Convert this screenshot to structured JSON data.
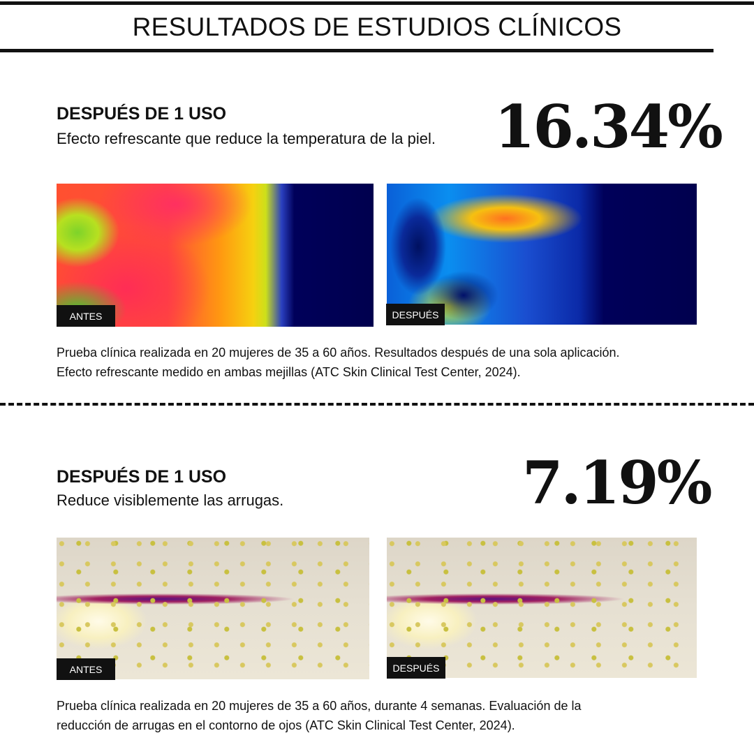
{
  "title": "RESULTADOS DE ESTUDIOS CLÍNICOS",
  "sections": [
    {
      "heading": "DESPUÉS DE 1 USO",
      "subtitle": "Efecto refrescante que reduce la temperatura de la piel.",
      "value": "16.34%",
      "before_label": "ANTES",
      "after_label": "DESPUÉS",
      "caption_lines": [
        "Prueba clínica realizada en 20 mujeres de 35 a 60 años. Resultados después de una sola aplicación.",
        "Efecto refrescante medido en ambas mejillas (ATC Skin Clinical Test Center, 2024)."
      ]
    },
    {
      "heading": "DESPUÉS DE 1 USO",
      "subtitle": "Reduce visiblemente las arrugas.",
      "value": "7.19%",
      "before_label": "ANTES",
      "after_label": "DESPUÉS",
      "caption_lines": [
        "Prueba clínica realizada en 20 mujeres de 35 a 60 años, durante 4 semanas. Evaluación de la",
        "reducción de arrugas en el contorno de ojos (ATC Skin Clinical Test Center, 2024)."
      ]
    }
  ]
}
